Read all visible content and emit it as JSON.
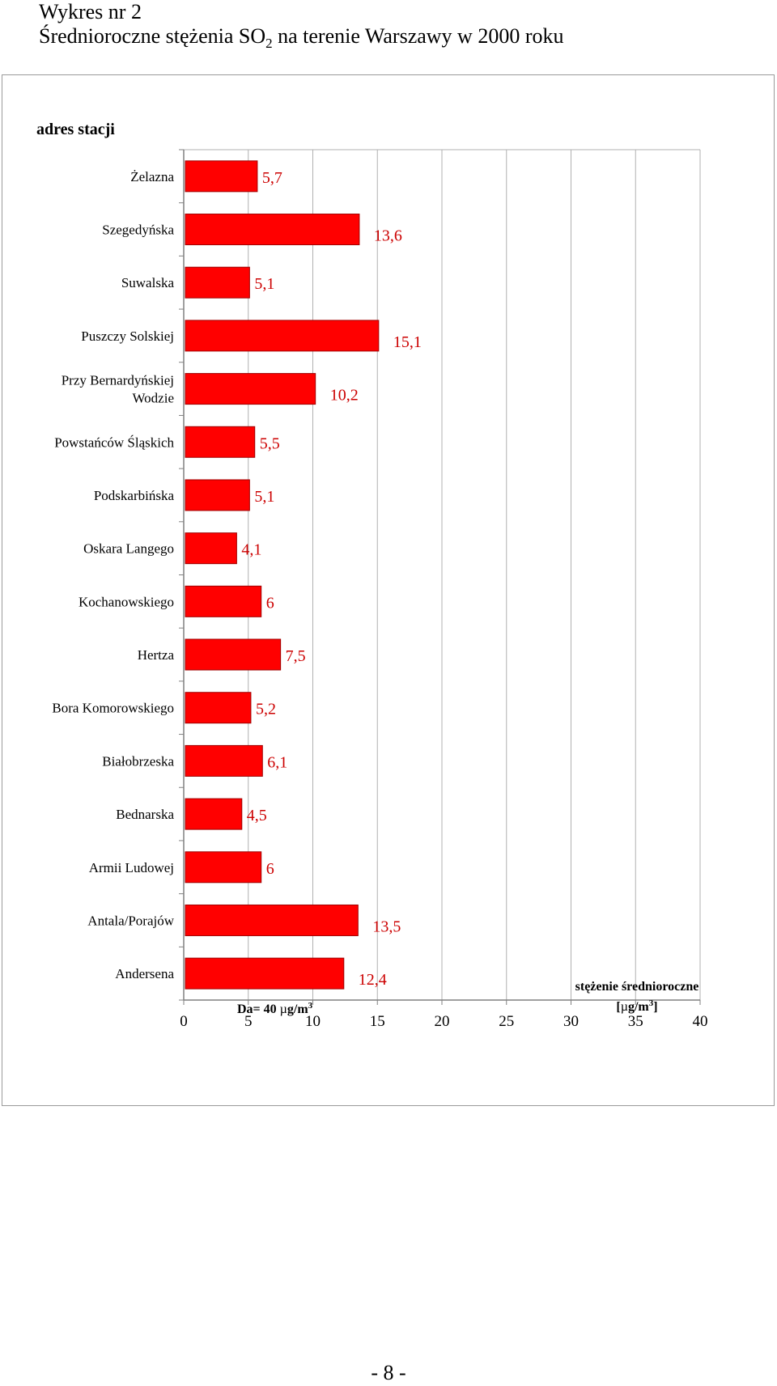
{
  "page": {
    "heading_line1": "Wykres nr 2",
    "heading_line2_pre": "Średnioroczne stężenia SO",
    "heading_line2_sub": "2",
    "heading_line2_post": " na terenie Warszawy w 2000 roku",
    "page_number": "- 8 -"
  },
  "chart_data": {
    "type": "bar",
    "orientation": "horizontal",
    "category_axis_title": "adres stacji",
    "categories": [
      [
        "Żelazna"
      ],
      [
        "Szegedyńska"
      ],
      [
        "Suwalska"
      ],
      [
        "Puszczy Solskiej"
      ],
      [
        "Przy Bernardyńskiej",
        "Wodzie"
      ],
      [
        "Powstańców Śląskich"
      ],
      [
        "Podskarbińska"
      ],
      [
        "Oskara Langego"
      ],
      [
        "Kochanowskiego"
      ],
      [
        "Hertza"
      ],
      [
        "Bora Komorowskiego"
      ],
      [
        "Białobrzeska"
      ],
      [
        "Bednarska"
      ],
      [
        "Armii Ludowej"
      ],
      [
        "Antala/Porajów"
      ],
      [
        "Andersena"
      ]
    ],
    "values": [
      5.7,
      13.6,
      5.1,
      15.1,
      10.2,
      5.5,
      5.1,
      4.1,
      6,
      7.5,
      5.2,
      6.1,
      4.5,
      6,
      13.5,
      12.4
    ],
    "data_labels": [
      "5,7",
      "13,6",
      "5,1",
      "15,1",
      "10,2",
      "5,5",
      "5,1",
      "4,1",
      "6",
      "7,5",
      "5,2",
      "6,1",
      "4,5",
      "6",
      "13,5",
      "12,4"
    ],
    "xlim": [
      0,
      40
    ],
    "xticks": [
      0,
      5,
      10,
      15,
      20,
      25,
      30,
      35,
      40
    ],
    "xtick_labels": [
      "0",
      "5",
      "10",
      "15",
      "20",
      "25",
      "30",
      "35",
      "40"
    ],
    "grid": "vertical",
    "bar_color": "#ff0000",
    "bar_edge_color": "#a00000",
    "label_color": "#cc0000",
    "annotation": {
      "text": "Da= 40 ",
      "unit_greek": "µ",
      "unit_rest": "g/m",
      "unit_sup": "3"
    },
    "value_axis_title": {
      "line1": "stężenie średnioroczne",
      "line2_pre": "[",
      "line2_greek": "µ",
      "line2_rest": "g/m",
      "line2_sup": "3",
      "line2_post": "]"
    }
  }
}
